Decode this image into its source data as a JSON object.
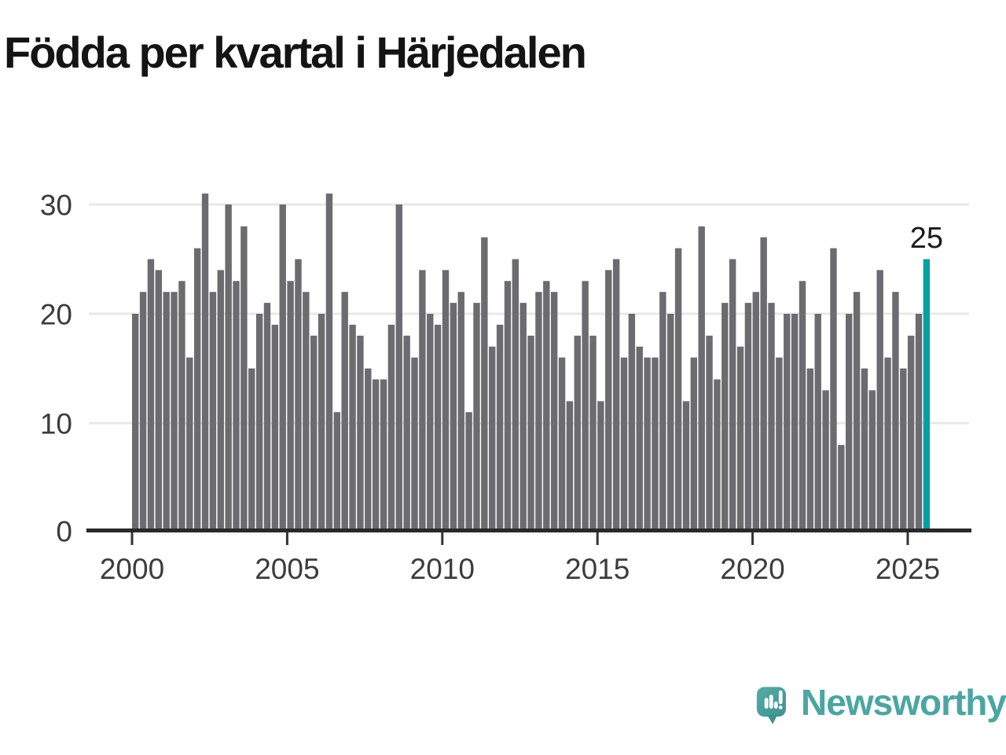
{
  "title": "Födda per kvartal i Härjedalen",
  "chart_data": {
    "type": "bar",
    "title": "Födda per kvartal i Härjedalen",
    "x_unit": "quarter",
    "start_quarter": "2000Q1",
    "end_quarter": "2025Q3",
    "values": [
      20,
      22,
      25,
      24,
      22,
      22,
      23,
      16,
      26,
      31,
      22,
      24,
      30,
      23,
      28,
      15,
      20,
      21,
      19,
      30,
      23,
      25,
      22,
      18,
      20,
      31,
      11,
      22,
      19,
      18,
      15,
      14,
      14,
      19,
      30,
      18,
      16,
      24,
      20,
      19,
      24,
      21,
      22,
      11,
      21,
      27,
      17,
      19,
      23,
      25,
      21,
      18,
      22,
      23,
      22,
      16,
      12,
      18,
      23,
      18,
      12,
      24,
      25,
      16,
      20,
      17,
      16,
      16,
      22,
      20,
      26,
      12,
      16,
      28,
      18,
      14,
      21,
      25,
      17,
      21,
      22,
      27,
      21,
      16,
      20,
      20,
      23,
      15,
      20,
      13,
      26,
      8,
      20,
      22,
      15,
      13,
      24,
      16,
      22,
      15,
      18,
      20,
      25
    ],
    "series_by_year": {
      "2000": [
        20,
        22,
        25,
        24
      ],
      "2001": [
        22,
        22,
        23,
        16
      ],
      "2002": [
        26,
        31,
        22,
        24
      ],
      "2003": [
        30,
        23,
        28,
        15
      ],
      "2004": [
        20,
        21,
        19,
        30
      ],
      "2005": [
        23,
        25,
        22,
        18
      ],
      "2006": [
        20,
        31,
        11,
        22
      ],
      "2007": [
        19,
        18,
        15,
        14
      ],
      "2008": [
        14,
        19,
        30,
        18
      ],
      "2009": [
        16,
        24,
        20,
        19
      ],
      "2010": [
        24,
        21,
        22,
        11
      ],
      "2011": [
        21,
        27,
        17,
        19
      ],
      "2012": [
        23,
        25,
        21,
        18
      ],
      "2013": [
        22,
        23,
        22,
        16
      ],
      "2014": [
        12,
        18,
        23,
        18
      ],
      "2015": [
        12,
        24,
        25,
        16
      ],
      "2016": [
        20,
        17,
        16,
        16
      ],
      "2017": [
        22,
        20,
        26,
        12
      ],
      "2018": [
        16,
        28,
        18,
        14
      ],
      "2019": [
        21,
        25,
        17,
        21
      ],
      "2020": [
        22,
        27,
        21,
        16
      ],
      "2021": [
        20,
        20,
        23,
        15
      ],
      "2022": [
        20,
        13,
        26,
        8
      ],
      "2023": [
        20,
        22,
        15,
        13
      ],
      "2024": [
        24,
        16,
        22,
        15
      ],
      "2025": [
        18,
        20,
        25
      ]
    },
    "highlight_last": true,
    "annotation_label": "25",
    "yticks": [
      0,
      10,
      20,
      30
    ],
    "xticks": [
      2000,
      2005,
      2010,
      2015,
      2020,
      2025
    ],
    "ylim": [
      0,
      31
    ],
    "grid": "horizontal",
    "legend": "none",
    "colors": {
      "bar": "#6b6b70",
      "highlight": "#00A1A1",
      "grid": "#e8e8e8",
      "axis": "#29292c",
      "tick_label": "#3c3c3c",
      "annotation": "#1b1b1b"
    }
  },
  "logo": {
    "text": "Newsworthy"
  }
}
